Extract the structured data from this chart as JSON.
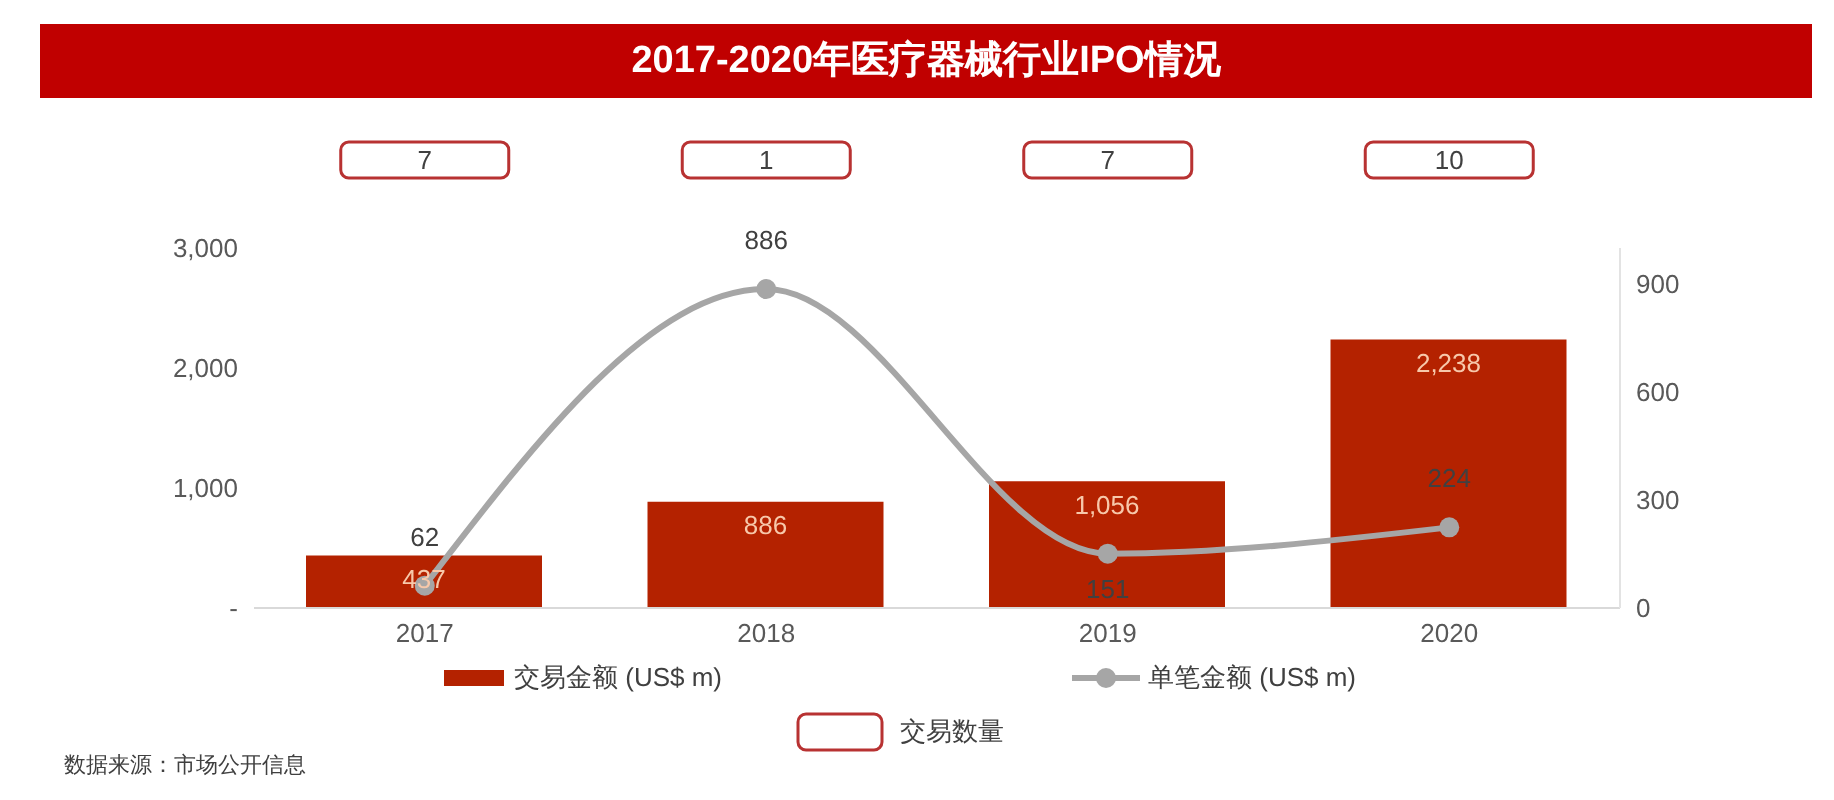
{
  "chart_data": [
    {
      "type": "other",
      "series": [
        {
          "name": "交易数量",
          "color": "#b83232",
          "values": [
            7,
            1,
            7,
            10
          ]
        }
      ],
      "data_labels": true,
      "legend": "bottom"
    },
    {
      "type": "bar",
      "title": "2017-2020年医疗器械行业IPO情况",
      "categories": [
        "2017",
        "2018",
        "2019",
        "2020"
      ],
      "series": [
        {
          "name": "交易金额 (US$ m)",
          "type": "bar",
          "color": "#b42200",
          "values": [
            437,
            886,
            1056,
            2238
          ],
          "value_labels": [
            "437",
            "886",
            "1,056",
            "2,238"
          ]
        },
        {
          "name": "单笔金额 (US$ m)",
          "type": "line",
          "axis": "y2",
          "color": "#a6a6a6",
          "values": [
            62,
            886,
            151,
            224
          ],
          "value_labels": [
            "62",
            "886",
            "151",
            "224"
          ]
        }
      ],
      "ylim": [
        0,
        3000
      ],
      "yticks": [
        {
          "value": 0,
          "label": "-"
        },
        {
          "value": 1000,
          "label": "1,000"
        },
        {
          "value": 2000,
          "label": "2,000"
        },
        {
          "value": 3000,
          "label": "3,000"
        }
      ],
      "y2lim": [
        0,
        1000
      ],
      "y2ticks": [
        0,
        300,
        600,
        900
      ],
      "legend": "bottom",
      "marker": "circle",
      "annotations": [
        "数据来源：市场公开信息"
      ]
    }
  ]
}
